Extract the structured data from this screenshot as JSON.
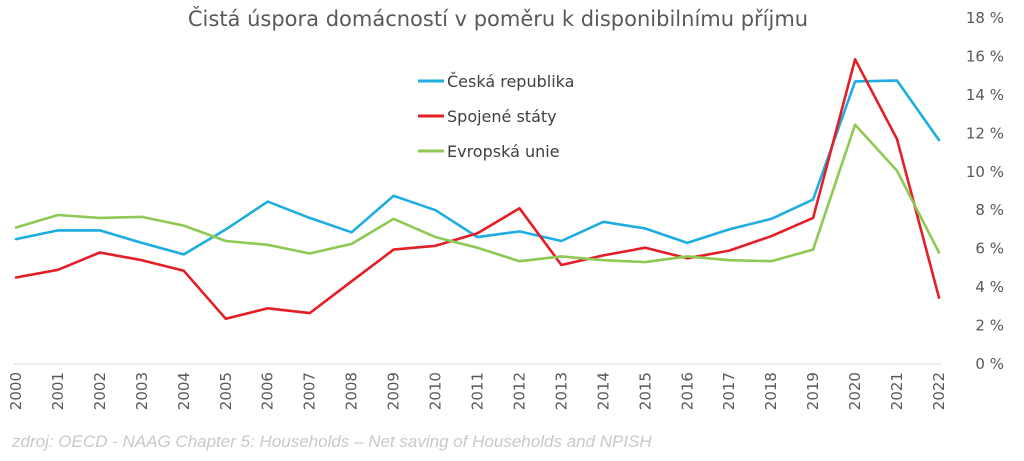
{
  "chart_data": {
    "type": "line",
    "title": "Čistá úspora domácností v poměru k disponibilnímu příjmu",
    "x": [
      "2000",
      "2001",
      "2002",
      "2003",
      "2004",
      "2005",
      "2006",
      "2007",
      "2008",
      "2009",
      "2010",
      "2011",
      "2012",
      "2013",
      "2014",
      "2015",
      "2016",
      "2017",
      "2018",
      "2019",
      "2020",
      "2021",
      "2022"
    ],
    "ylim": [
      0,
      18
    ],
    "yticks": [
      0,
      2,
      4,
      6,
      8,
      10,
      12,
      14,
      16,
      18
    ],
    "ytick_labels": [
      "0 %",
      "2 %",
      "4 %",
      "6 %",
      "8 %",
      "10 %",
      "12 %",
      "14 %",
      "16 %",
      "18 %"
    ],
    "y_axis_side": "right",
    "grid": false,
    "legend_position": "top-center",
    "series": [
      {
        "name": "Česká republika",
        "color": "#1EADE1",
        "values": [
          6.5,
          6.95,
          6.95,
          6.3,
          5.7,
          7.0,
          8.45,
          7.6,
          6.85,
          8.75,
          8.0,
          6.6,
          6.9,
          6.4,
          7.4,
          7.05,
          6.3,
          7.0,
          7.55,
          8.55,
          14.7,
          14.75,
          11.65
        ]
      },
      {
        "name": "Spojené státy",
        "color": "#E31E24",
        "values": [
          4.5,
          4.9,
          5.8,
          5.4,
          4.85,
          2.35,
          2.9,
          2.65,
          4.3,
          5.95,
          6.15,
          6.8,
          8.1,
          5.15,
          5.65,
          6.05,
          5.5,
          5.9,
          6.65,
          7.6,
          15.85,
          11.7,
          3.45
        ]
      },
      {
        "name": "Evropská unie",
        "color": "#8DC953",
        "values": [
          7.1,
          7.75,
          7.6,
          7.65,
          7.2,
          6.4,
          6.2,
          5.75,
          6.25,
          7.55,
          6.6,
          6.05,
          5.35,
          5.6,
          5.4,
          5.3,
          5.6,
          5.4,
          5.35,
          5.95,
          12.45,
          10.05,
          5.8
        ]
      }
    ]
  },
  "source_text": "zdroj: OECD - NAAG Chapter 5: Households – Net saving of Households and NPISH"
}
